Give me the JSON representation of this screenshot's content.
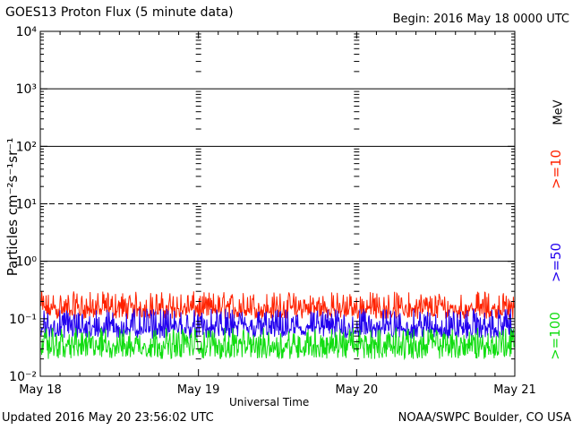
{
  "header": {
    "title": "GOES13 Proton Flux (5 minute data)",
    "begin": "Begin: 2016 May 18 0000 UTC"
  },
  "footer": {
    "updated": "Updated 2016 May 20 23:56:02 UTC",
    "credit": "NOAA/SWPC Boulder, CO USA"
  },
  "chart_data": {
    "type": "line",
    "title": "GOES13 Proton Flux (5 minute data)",
    "xlabel": "Universal Time",
    "ylabel": "Particles cm⁻²s⁻¹sr⁻¹",
    "yscale": "log",
    "ylim": [
      0.01,
      10000
    ],
    "y_tick_labels": [
      "10⁻²",
      "10⁻¹",
      "10⁰",
      "10¹",
      "10²",
      "10³",
      "10⁴"
    ],
    "x_tick_labels": [
      "May 18",
      "May 19",
      "May 20",
      "May 21"
    ],
    "legend_unit": "MeV",
    "legend_placement": "right",
    "reference_lines": [
      {
        "y": 1,
        "style": "solid"
      },
      {
        "y": 10,
        "style": "dashed"
      },
      {
        "y": 100,
        "style": "solid"
      },
      {
        "y": 1000,
        "style": "solid"
      }
    ],
    "series": [
      {
        "name": ">=10",
        "color": "#ff2200",
        "typical_value": 0.15,
        "range": [
          0.1,
          0.3
        ]
      },
      {
        "name": ">=50",
        "color": "#2200ee",
        "typical_value": 0.07,
        "range": [
          0.045,
          0.15
        ]
      },
      {
        "name": ">=100",
        "color": "#11dd11",
        "typical_value": 0.035,
        "range": [
          0.02,
          0.07
        ]
      }
    ]
  }
}
